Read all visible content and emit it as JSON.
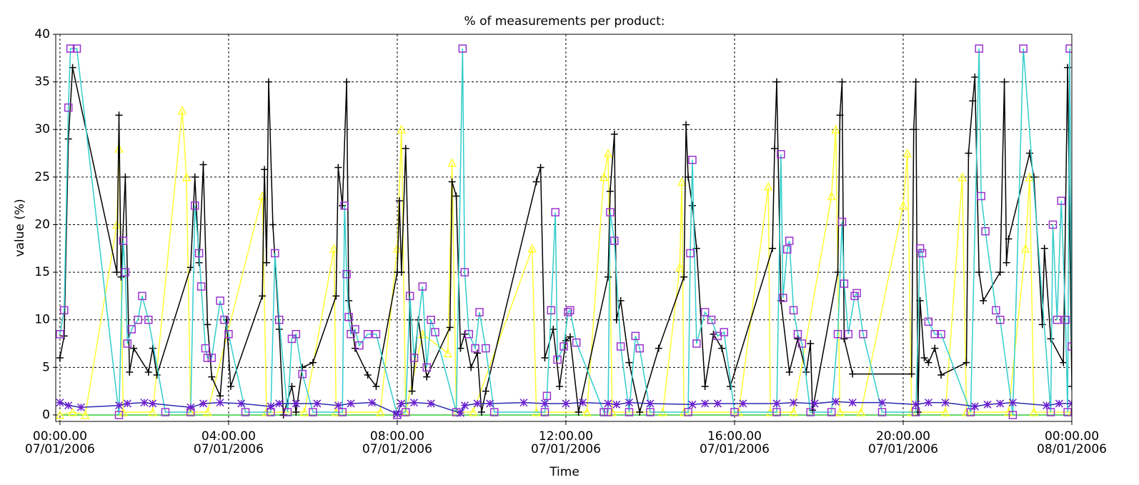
{
  "chart_data": {
    "type": "line",
    "title": "% of measurements per product:",
    "x_label": "Time",
    "y_label": "value (%)",
    "xlim": [
      -0.1,
      24.0
    ],
    "ylim": [
      -0.68,
      40
    ],
    "xticks": [
      {
        "value": 0,
        "label": "00:00.00\n07/01/2006"
      },
      {
        "value": 4,
        "label": "04:00.00\n07/01/2006"
      },
      {
        "value": 8,
        "label": "08:00.00\n07/01/2006"
      },
      {
        "value": 12,
        "label": "12:00.00\n07/01/2006"
      },
      {
        "value": 16,
        "label": "16:00.00\n07/01/2006"
      },
      {
        "value": 20,
        "label": "20:00.00\n07/01/2006"
      },
      {
        "value": 24,
        "label": "00:00.00\n08/01/2006"
      }
    ],
    "yticks": [
      0,
      5,
      10,
      15,
      20,
      25,
      30,
      35,
      40
    ],
    "grid": true,
    "series": [
      {
        "color": "#33cc33",
        "marker": "none",
        "marker_color": "#33cc33",
        "x": [
          0,
          6,
          12,
          18,
          24
        ],
        "values": [
          0,
          0,
          0,
          0,
          0
        ]
      },
      {
        "color": "#ffff33",
        "marker": "triangle",
        "marker_color": "#ffff33",
        "x": [
          0.0,
          0.3,
          0.6,
          1.35,
          1.4,
          1.5,
          2.2,
          2.9,
          3.0,
          3.1,
          3.5,
          4.8,
          4.9,
          5.8,
          6.5,
          6.55,
          7.6,
          8.0,
          8.1,
          8.2,
          8.6,
          9.2,
          9.3,
          9.4,
          9.8,
          11.2,
          11.3,
          12.5,
          12.9,
          13.0,
          13.1,
          14.3,
          14.7,
          14.75,
          14.8,
          16.1,
          16.8,
          16.85,
          17.4,
          18.3,
          18.4,
          18.5,
          19.0,
          20.0,
          20.1,
          20.2,
          21.0,
          21.4,
          21.5,
          22.5,
          22.9,
          23.0,
          23.1,
          24.0
        ],
        "values": [
          0,
          0.3,
          0,
          20,
          28,
          0.3,
          0.3,
          32,
          25,
          0.3,
          0.3,
          23,
          0.3,
          0.3,
          17.5,
          0.3,
          0.3,
          17.5,
          30,
          0.3,
          8.5,
          6.5,
          26.5,
          0.3,
          0.3,
          17.5,
          0.3,
          0.3,
          25,
          27.5,
          0.3,
          0.3,
          15.5,
          24.5,
          0.3,
          0.3,
          24,
          0.3,
          0.3,
          23,
          30,
          0.3,
          0.3,
          22,
          27.5,
          0.3,
          0.3,
          25,
          0.3,
          0.3,
          17.5,
          25,
          0.3,
          0.3
        ]
      },
      {
        "color": "#000000",
        "marker": "plus",
        "marker_color": "#000000",
        "x": [
          0.0,
          0.1,
          0.2,
          0.3,
          1.35,
          1.4,
          1.45,
          1.55,
          1.65,
          1.75,
          2.1,
          2.2,
          2.3,
          3.1,
          3.2,
          3.3,
          3.4,
          3.5,
          3.6,
          3.8,
          3.95,
          4.05,
          4.8,
          4.85,
          4.9,
          4.95,
          5.05,
          5.2,
          5.3,
          5.5,
          5.6,
          5.75,
          6.0,
          6.55,
          6.6,
          6.7,
          6.8,
          6.85,
          7.0,
          7.3,
          7.5,
          8.0,
          8.05,
          8.1,
          8.2,
          8.3,
          8.35,
          8.5,
          8.7,
          9.25,
          9.3,
          9.4,
          9.5,
          9.6,
          9.75,
          9.9,
          10.0,
          10.1,
          11.3,
          11.4,
          11.5,
          11.7,
          11.85,
          12.0,
          12.1,
          12.3,
          13.0,
          13.05,
          13.15,
          13.2,
          13.3,
          13.5,
          13.75,
          14.2,
          14.8,
          14.85,
          14.9,
          15.0,
          15.1,
          15.3,
          15.5,
          15.7,
          15.9,
          16.9,
          16.95,
          17.0,
          17.1,
          17.3,
          17.5,
          17.7,
          17.8,
          17.85,
          18.45,
          18.5,
          18.55,
          18.6,
          18.8,
          20.2,
          20.25,
          20.3,
          20.35,
          20.4,
          20.5,
          20.6,
          20.75,
          20.9,
          21.5,
          21.55,
          21.65,
          21.7,
          21.8,
          21.9,
          22.3,
          22.4,
          22.45,
          22.5,
          23.0,
          23.1,
          23.3,
          23.35,
          23.5,
          23.8,
          23.9,
          24.0
        ],
        "values": [
          6,
          8.3,
          29,
          36.5,
          15,
          31.5,
          14.5,
          25,
          4.5,
          7,
          4.5,
          7,
          4.2,
          15.5,
          25,
          16,
          26.3,
          9.5,
          4,
          2,
          10,
          3,
          12.5,
          25.8,
          16,
          35,
          20,
          9,
          0,
          3,
          0.3,
          5,
          5.5,
          12.5,
          26,
          22,
          35,
          12,
          7,
          4.2,
          3,
          15,
          22.5,
          15,
          28,
          10,
          2.5,
          10,
          4,
          9.2,
          24.5,
          23,
          7,
          8.5,
          5,
          6.5,
          0.3,
          2.5,
          24.5,
          26,
          6,
          9,
          3,
          7.8,
          8.2,
          0.3,
          14.5,
          23.5,
          29.5,
          10,
          12,
          5.5,
          0.3,
          7,
          14.5,
          30.5,
          25,
          22,
          17.5,
          3,
          8.5,
          7,
          3,
          17.5,
          28,
          35,
          12,
          4.5,
          8,
          4.5,
          7.5,
          0.5,
          15,
          31.5,
          35,
          8,
          4.3,
          4.3,
          30,
          35,
          0.3,
          12,
          6,
          5.5,
          7,
          4.2,
          5.5,
          27.5,
          33,
          35.5,
          15,
          12,
          15,
          35,
          16,
          18.5,
          27.5,
          25,
          9.5,
          17.5,
          8,
          5.5,
          36.5,
          3
        ]
      },
      {
        "color": "#33cccc",
        "marker": "square",
        "marker_color": "#9933cc",
        "x": [
          0.0,
          0.1,
          0.2,
          0.25,
          0.4,
          1.4,
          1.5,
          1.55,
          1.6,
          1.7,
          1.85,
          1.95,
          2.1,
          2.5,
          3.1,
          3.2,
          3.3,
          3.35,
          3.45,
          3.5,
          3.6,
          3.8,
          3.9,
          4.0,
          4.4,
          5.0,
          5.1,
          5.2,
          5.4,
          5.5,
          5.6,
          5.75,
          6.0,
          6.7,
          6.75,
          6.8,
          6.85,
          6.9,
          7.0,
          7.1,
          7.3,
          7.5,
          8.0,
          8.2,
          8.3,
          8.4,
          8.6,
          8.7,
          8.8,
          8.9,
          9.4,
          9.55,
          9.6,
          9.7,
          9.85,
          9.95,
          10.1,
          10.3,
          11.5,
          11.55,
          11.65,
          11.75,
          11.8,
          11.95,
          12.05,
          12.1,
          12.25,
          12.9,
          13.0,
          13.05,
          13.15,
          13.3,
          13.5,
          13.65,
          13.75,
          14.0,
          14.9,
          14.95,
          15.0,
          15.1,
          15.3,
          15.45,
          15.6,
          15.75,
          16.0,
          17.0,
          17.1,
          17.15,
          17.25,
          17.3,
          17.4,
          17.5,
          17.6,
          17.8,
          18.3,
          18.45,
          18.55,
          18.6,
          18.7,
          18.85,
          18.9,
          19.05,
          19.5,
          20.3,
          20.4,
          20.45,
          20.6,
          20.75,
          20.9,
          21.6,
          21.8,
          21.85,
          21.95,
          22.2,
          22.3,
          22.6,
          22.85,
          23.5,
          23.55,
          23.65,
          23.75,
          23.85,
          23.9,
          23.95,
          24.0
        ],
        "values": [
          8.5,
          11,
          32.3,
          38.5,
          38.5,
          0,
          18.3,
          15,
          7.5,
          9,
          10,
          12.5,
          10,
          0.3,
          0.3,
          22,
          17,
          13.5,
          7,
          6,
          6,
          12,
          10,
          8.5,
          0.3,
          0.3,
          17,
          10,
          0.3,
          8,
          8.5,
          4.3,
          0.3,
          0.3,
          22,
          14.8,
          10.3,
          8.5,
          9,
          7.3,
          8.5,
          8.5,
          0,
          0.3,
          12.5,
          6,
          13.5,
          5,
          10,
          8.7,
          0.3,
          38.5,
          15,
          8.5,
          7,
          10.8,
          7,
          0.3,
          0.3,
          2,
          11,
          21.3,
          5.8,
          7.2,
          10.8,
          11,
          7.6,
          0.3,
          0.3,
          21.3,
          18.3,
          7.2,
          0.3,
          8.3,
          7,
          0.3,
          0.3,
          17,
          26.8,
          7.5,
          10.8,
          10,
          8.3,
          8.7,
          0.3,
          0.3,
          27.4,
          12.3,
          17.4,
          18.3,
          11,
          8.5,
          7.5,
          0.3,
          0.3,
          8.5,
          20.3,
          13.8,
          8.5,
          12.5,
          12.8,
          8.5,
          0.3,
          0.3,
          17.5,
          17,
          9.8,
          8.5,
          8.5,
          0.3,
          38.5,
          23,
          19.3,
          11,
          10,
          0,
          38.5,
          0.3,
          20,
          10,
          22.5,
          10,
          0.3,
          38.5,
          7.2
        ]
      },
      {
        "color": "#2b2bb0",
        "marker": "star",
        "marker_color": "#6a1fd0",
        "x": [
          0,
          0.2,
          0.5,
          1.4,
          1.6,
          2.0,
          2.2,
          3.1,
          3.4,
          3.8,
          4.3,
          5.0,
          5.2,
          5.6,
          6.1,
          6.6,
          6.9,
          7.4,
          8.0,
          8.1,
          8.4,
          8.8,
          9.5,
          9.6,
          9.9,
          10.2,
          11.0,
          11.5,
          12.0,
          12.4,
          13.0,
          13.2,
          13.5,
          14.0,
          15.0,
          15.3,
          15.6,
          16.2,
          17.0,
          17.4,
          17.9,
          18.4,
          18.8,
          19.5,
          20.3,
          20.6,
          21.0,
          21.7,
          22.0,
          22.3,
          22.6,
          23.4,
          23.7,
          24
        ],
        "values": [
          1.3,
          1,
          0.8,
          1,
          1.2,
          1.3,
          1.2,
          0.8,
          1.2,
          1.3,
          1.2,
          0.9,
          1.2,
          1.2,
          1.2,
          1,
          1.2,
          1.3,
          0.1,
          1.2,
          1.3,
          1.2,
          0.2,
          1,
          1.2,
          1.2,
          1.3,
          1.2,
          1.2,
          1.3,
          1.2,
          1.1,
          1.3,
          1.2,
          1.1,
          1.2,
          1.2,
          1.2,
          1.2,
          1.3,
          1.2,
          1.4,
          1.3,
          1.3,
          1.1,
          1.3,
          1.3,
          0.9,
          1.1,
          1.2,
          1.3,
          1,
          1.2,
          1.2
        ]
      }
    ]
  }
}
